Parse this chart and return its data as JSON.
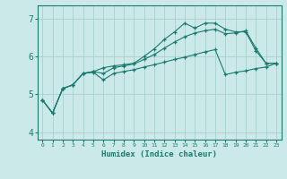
{
  "xlabel": "Humidex (Indice chaleur)",
  "ylabel": "",
  "xlim": [
    -0.5,
    23.5
  ],
  "ylim": [
    3.8,
    7.35
  ],
  "xticks": [
    0,
    1,
    2,
    3,
    4,
    5,
    6,
    7,
    8,
    9,
    10,
    11,
    12,
    13,
    14,
    15,
    16,
    17,
    18,
    19,
    20,
    21,
    22,
    23
  ],
  "yticks": [
    4,
    5,
    6,
    7
  ],
  "background_color": "#cce9e9",
  "line_color": "#1a7a6e",
  "grid_color": "#a8d0d0",
  "line1_x": [
    0,
    1,
    2,
    3,
    4,
    5,
    6,
    7,
    8,
    9,
    10,
    11,
    12,
    13,
    14,
    15,
    16,
    17,
    18,
    19,
    20,
    21,
    22,
    23
  ],
  "line1_y": [
    4.85,
    4.5,
    5.15,
    5.25,
    5.55,
    5.6,
    5.7,
    5.75,
    5.78,
    5.82,
    6.0,
    6.2,
    6.45,
    6.65,
    6.88,
    6.75,
    6.88,
    6.88,
    6.72,
    6.65,
    6.65,
    6.15,
    5.82,
    5.82
  ],
  "line2_x": [
    0,
    1,
    2,
    3,
    4,
    5,
    6,
    7,
    8,
    9,
    10,
    11,
    12,
    13,
    14,
    15,
    16,
    17,
    18,
    19,
    20,
    21,
    22,
    23
  ],
  "line2_y": [
    4.85,
    4.5,
    5.15,
    5.25,
    5.55,
    5.6,
    5.55,
    5.7,
    5.75,
    5.8,
    5.92,
    6.05,
    6.22,
    6.38,
    6.52,
    6.62,
    6.68,
    6.72,
    6.6,
    6.62,
    6.68,
    6.22,
    5.82,
    5.82
  ],
  "line3_x": [
    0,
    1,
    2,
    3,
    4,
    5,
    6,
    7,
    8,
    9,
    10,
    11,
    12,
    13,
    14,
    15,
    16,
    17,
    18,
    19,
    20,
    21,
    22,
    23
  ],
  "line3_y": [
    4.85,
    4.5,
    5.15,
    5.25,
    5.55,
    5.58,
    5.38,
    5.55,
    5.6,
    5.65,
    5.72,
    5.78,
    5.85,
    5.92,
    5.98,
    6.05,
    6.12,
    6.18,
    5.52,
    5.58,
    5.62,
    5.68,
    5.72,
    5.82
  ]
}
